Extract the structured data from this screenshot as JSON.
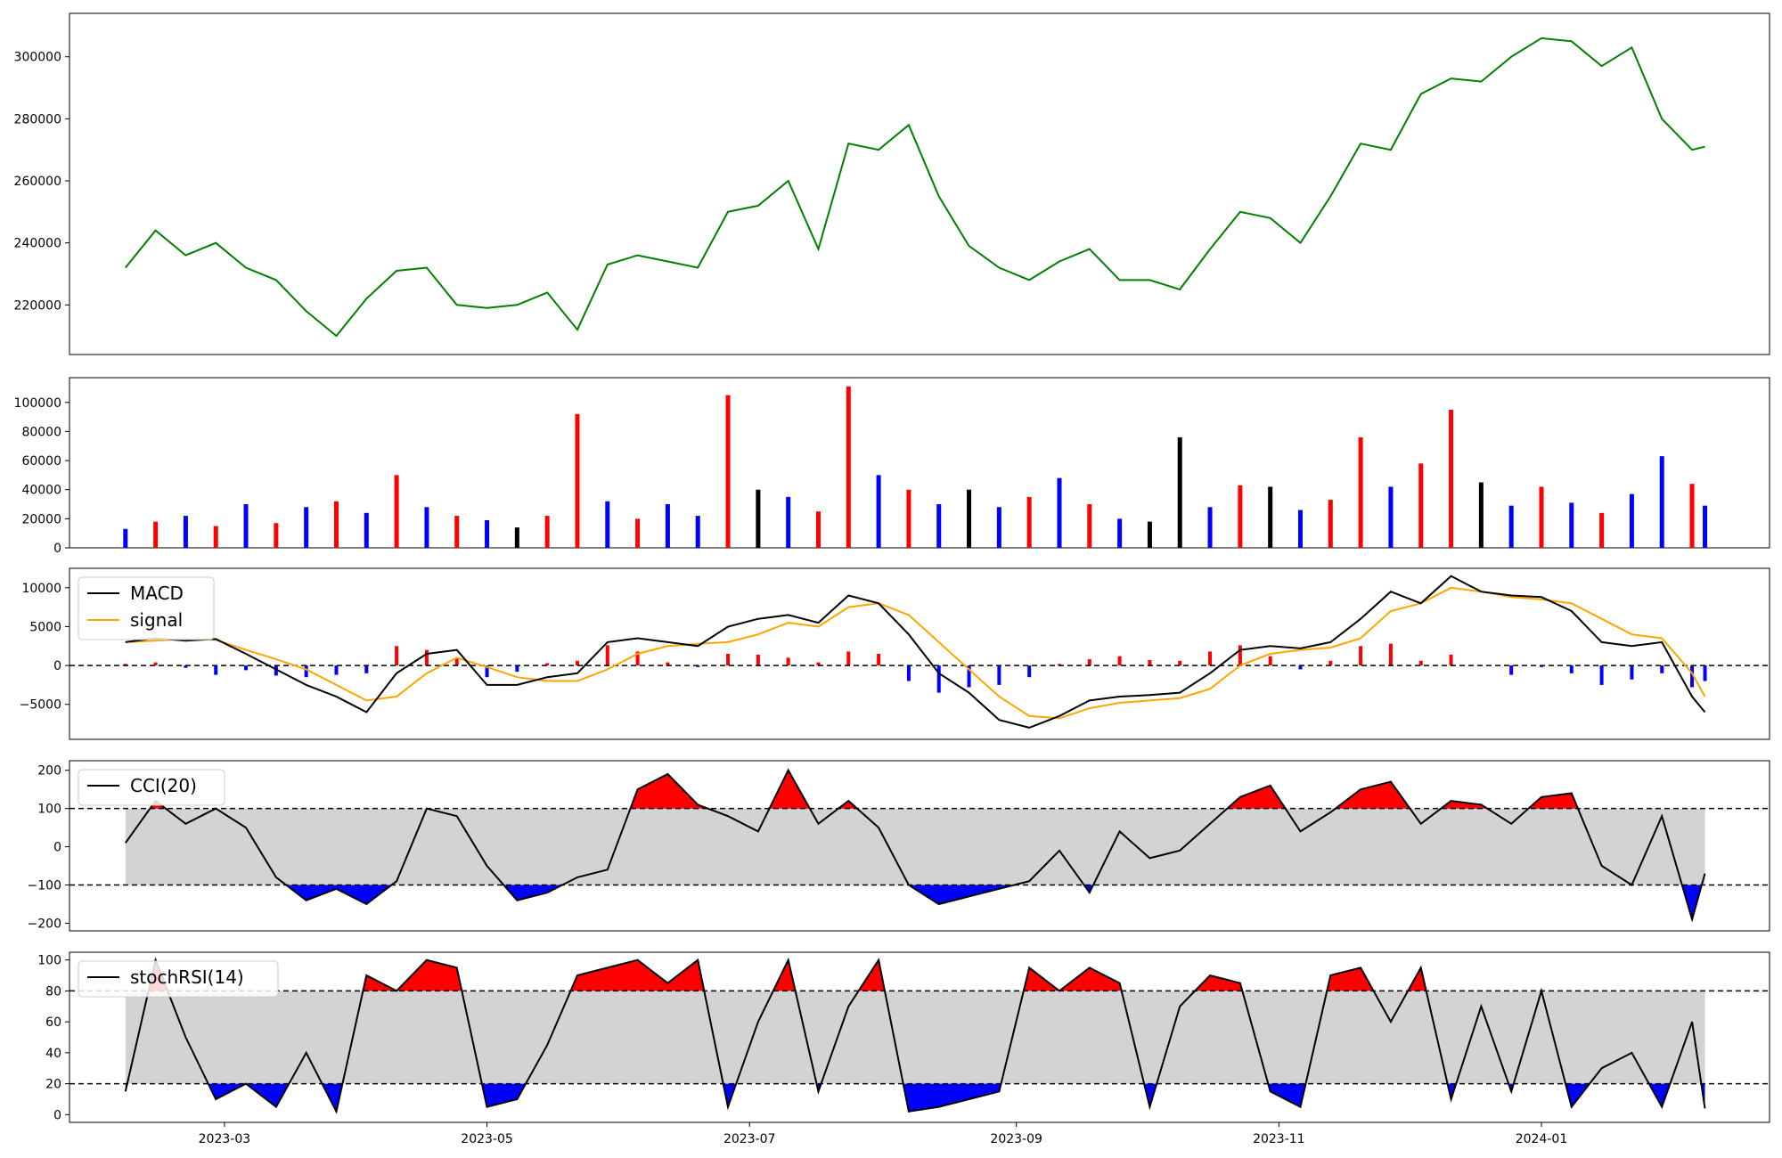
{
  "chart_data": [
    {
      "type": "line",
      "panel": "price",
      "color": "#008000",
      "yticks": [
        220000,
        240000,
        260000,
        280000,
        300000
      ],
      "ylim": [
        204000,
        314000
      ],
      "x": [
        "2023-02-06",
        "2023-02-13",
        "2023-02-20",
        "2023-02-27",
        "2023-03-06",
        "2023-03-13",
        "2023-03-20",
        "2023-03-27",
        "2023-04-03",
        "2023-04-10",
        "2023-04-17",
        "2023-04-24",
        "2023-05-01",
        "2023-05-08",
        "2023-05-15",
        "2023-05-22",
        "2023-05-29",
        "2023-06-05",
        "2023-06-12",
        "2023-06-19",
        "2023-06-26",
        "2023-07-03",
        "2023-07-10",
        "2023-07-17",
        "2023-07-24",
        "2023-07-31",
        "2023-08-07",
        "2023-08-14",
        "2023-08-21",
        "2023-08-28",
        "2023-09-04",
        "2023-09-11",
        "2023-09-18",
        "2023-09-25",
        "2023-10-02",
        "2023-10-09",
        "2023-10-16",
        "2023-10-23",
        "2023-10-30",
        "2023-11-06",
        "2023-11-13",
        "2023-11-20",
        "2023-11-27",
        "2023-12-04",
        "2023-12-11",
        "2023-12-18",
        "2023-12-25",
        "2024-01-01",
        "2024-01-08",
        "2024-01-15",
        "2024-01-22",
        "2024-01-29",
        "2024-02-05",
        "2024-02-08"
      ],
      "values": [
        232000,
        244000,
        236000,
        240000,
        232000,
        228000,
        218000,
        210000,
        222000,
        231000,
        232000,
        220000,
        219000,
        220000,
        224000,
        212000,
        233000,
        236000,
        234000,
        232000,
        250000,
        252000,
        260000,
        238000,
        272000,
        270000,
        278000,
        255000,
        239000,
        232000,
        228000,
        234000,
        238000,
        228000,
        228000,
        225000,
        238000,
        250000,
        248000,
        240000,
        255000,
        272000,
        270000,
        288000,
        293000,
        292000,
        300000,
        306000,
        305000,
        297000,
        303000,
        280000,
        270000,
        271000
      ]
    },
    {
      "type": "bar",
      "panel": "volume",
      "yticks": [
        0,
        20000,
        40000,
        60000,
        80000,
        100000
      ],
      "ylim": [
        0,
        117000
      ],
      "colors": {
        "up": "#ff0000",
        "down": "#0000ff",
        "flat": "#000000"
      },
      "x": [
        "2023-02-06",
        "2023-02-13",
        "2023-02-20",
        "2023-02-27",
        "2023-03-06",
        "2023-03-13",
        "2023-03-20",
        "2023-03-27",
        "2023-04-03",
        "2023-04-10",
        "2023-04-17",
        "2023-04-24",
        "2023-05-01",
        "2023-05-08",
        "2023-05-15",
        "2023-05-22",
        "2023-05-29",
        "2023-06-05",
        "2023-06-12",
        "2023-06-19",
        "2023-06-26",
        "2023-07-03",
        "2023-07-10",
        "2023-07-17",
        "2023-07-24",
        "2023-07-31",
        "2023-08-07",
        "2023-08-14",
        "2023-08-21",
        "2023-08-28",
        "2023-09-04",
        "2023-09-11",
        "2023-09-18",
        "2023-09-25",
        "2023-10-02",
        "2023-10-09",
        "2023-10-16",
        "2023-10-23",
        "2023-10-30",
        "2023-11-06",
        "2023-11-13",
        "2023-11-20",
        "2023-11-27",
        "2023-12-04",
        "2023-12-11",
        "2023-12-18",
        "2023-12-25",
        "2024-01-01",
        "2024-01-08",
        "2024-01-15",
        "2024-01-22",
        "2024-01-29",
        "2024-02-05",
        "2024-02-08"
      ],
      "values": [
        13000,
        18000,
        22000,
        15000,
        30000,
        17000,
        28000,
        32000,
        24000,
        50000,
        28000,
        22000,
        19000,
        14000,
        22000,
        92000,
        32000,
        20000,
        30000,
        22000,
        105000,
        40000,
        35000,
        25000,
        111000,
        50000,
        40000,
        30000,
        40000,
        28000,
        35000,
        48000,
        30000,
        20000,
        18000,
        76000,
        28000,
        43000,
        42000,
        26000,
        33000,
        76000,
        42000,
        58000,
        95000,
        45000,
        29000,
        42000,
        31000,
        24000,
        37000,
        63000,
        44000,
        29000
      ],
      "direction": [
        "down",
        "up",
        "down",
        "up",
        "down",
        "up",
        "down",
        "up",
        "down",
        "up",
        "down",
        "up",
        "down",
        "flat",
        "up",
        "up",
        "down",
        "up",
        "down",
        "down",
        "up",
        "flat",
        "down",
        "up",
        "up",
        "down",
        "up",
        "down",
        "flat",
        "down",
        "up",
        "down",
        "up",
        "down",
        "flat",
        "flat",
        "down",
        "up",
        "flat",
        "down",
        "up",
        "up",
        "down",
        "up",
        "up",
        "flat",
        "down",
        "up",
        "down",
        "up",
        "down",
        "down",
        "up",
        "down"
      ]
    },
    {
      "type": "line",
      "panel": "macd",
      "yticks": [
        -5000,
        0,
        5000,
        10000
      ],
      "ylim": [
        -9500,
        12500
      ],
      "series": [
        {
          "name": "MACD",
          "color": "#000000",
          "values": [
            3000,
            3500,
            3200,
            3400,
            1500,
            -500,
            -2500,
            -4000,
            -6000,
            -1000,
            1500,
            2000,
            -2500,
            -2500,
            -1500,
            -1000,
            3000,
            3500,
            3000,
            2500,
            5000,
            6000,
            6500,
            5500,
            9000,
            8000,
            4000,
            -1000,
            -3500,
            -7000,
            -8000,
            -6500,
            -4500,
            -4000,
            -3800,
            -3500,
            -1000,
            2000,
            2500,
            2200,
            3000,
            6000,
            9500,
            8000,
            11500,
            9500,
            9000,
            8800,
            7000,
            3000,
            2500,
            3000,
            -4000,
            -6000
          ]
        },
        {
          "name": "signal",
          "color": "#ffa500",
          "values": [
            3000,
            3200,
            3400,
            3300,
            2000,
            800,
            -500,
            -2500,
            -4500,
            -4000,
            -1000,
            1000,
            -200,
            -1500,
            -2000,
            -2000,
            -500,
            1500,
            2500,
            2800,
            3000,
            4000,
            5500,
            5000,
            7500,
            8000,
            6500,
            3000,
            -500,
            -4000,
            -6500,
            -6800,
            -5500,
            -4800,
            -4500,
            -4200,
            -3000,
            0,
            1500,
            2000,
            2300,
            3500,
            7000,
            8000,
            10000,
            9500,
            8800,
            8500,
            8000,
            6000,
            4000,
            3500,
            -1000,
            -4000
          ]
        },
        {
          "name": "histogram",
          "values": [
            200,
            400,
            -300,
            -1200,
            -600,
            -1300,
            -1500,
            -1200,
            -1000,
            2500,
            2000,
            1000,
            -1500,
            -800,
            300,
            600,
            2600,
            1800,
            400,
            -200,
            1500,
            1400,
            1000,
            400,
            1800,
            1500,
            -2000,
            -3500,
            -2800,
            -2500,
            -1500,
            200,
            800,
            1200,
            700,
            600,
            1800,
            2600,
            1200,
            -500,
            600,
            2500,
            2800,
            600,
            1400,
            0,
            -1200,
            -200,
            -1000,
            -2500,
            -1800,
            -1000,
            -2800,
            -2000
          ]
        }
      ],
      "hline": 0
    },
    {
      "type": "area",
      "panel": "cci",
      "name": "CCI(20)",
      "yticks": [
        -200,
        -100,
        0,
        100,
        200
      ],
      "ylim": [
        -220,
        225
      ],
      "thresholds": [
        -100,
        100
      ],
      "colors": {
        "line": "#000000",
        "band": "#d3d3d3",
        "above": "#ff0000",
        "below": "#0000ff"
      },
      "values": [
        10,
        120,
        60,
        100,
        50,
        -80,
        -140,
        -110,
        -150,
        -90,
        100,
        80,
        -50,
        -140,
        -120,
        -80,
        -60,
        150,
        190,
        110,
        80,
        40,
        200,
        60,
        120,
        50,
        -100,
        -150,
        -130,
        -110,
        -90,
        -10,
        -120,
        40,
        -30,
        -10,
        60,
        130,
        160,
        40,
        90,
        150,
        170,
        60,
        120,
        110,
        60,
        130,
        140,
        -50,
        -100,
        80,
        -190,
        -70
      ]
    },
    {
      "type": "area",
      "panel": "stochrsi",
      "name": "stochRSI(14)",
      "yticks": [
        0,
        20,
        40,
        60,
        80,
        100
      ],
      "ylim": [
        -5,
        105
      ],
      "thresholds": [
        20,
        80
      ],
      "colors": {
        "line": "#000000",
        "band": "#d3d3d3",
        "above": "#ff0000",
        "below": "#0000ff"
      },
      "values": [
        15,
        100,
        50,
        10,
        20,
        5,
        40,
        2,
        90,
        80,
        100,
        95,
        5,
        10,
        45,
        90,
        95,
        100,
        85,
        100,
        5,
        60,
        100,
        15,
        70,
        100,
        2,
        5,
        10,
        15,
        95,
        80,
        95,
        85,
        5,
        70,
        90,
        85,
        15,
        5,
        90,
        95,
        60,
        95,
        10,
        70,
        15,
        80,
        5,
        30,
        40,
        5,
        60,
        4
      ]
    }
  ],
  "x_axis": {
    "tick_labels": [
      "2023-03",
      "2023-05",
      "2023-07",
      "2023-09",
      "2023-11",
      "2024-01"
    ]
  }
}
